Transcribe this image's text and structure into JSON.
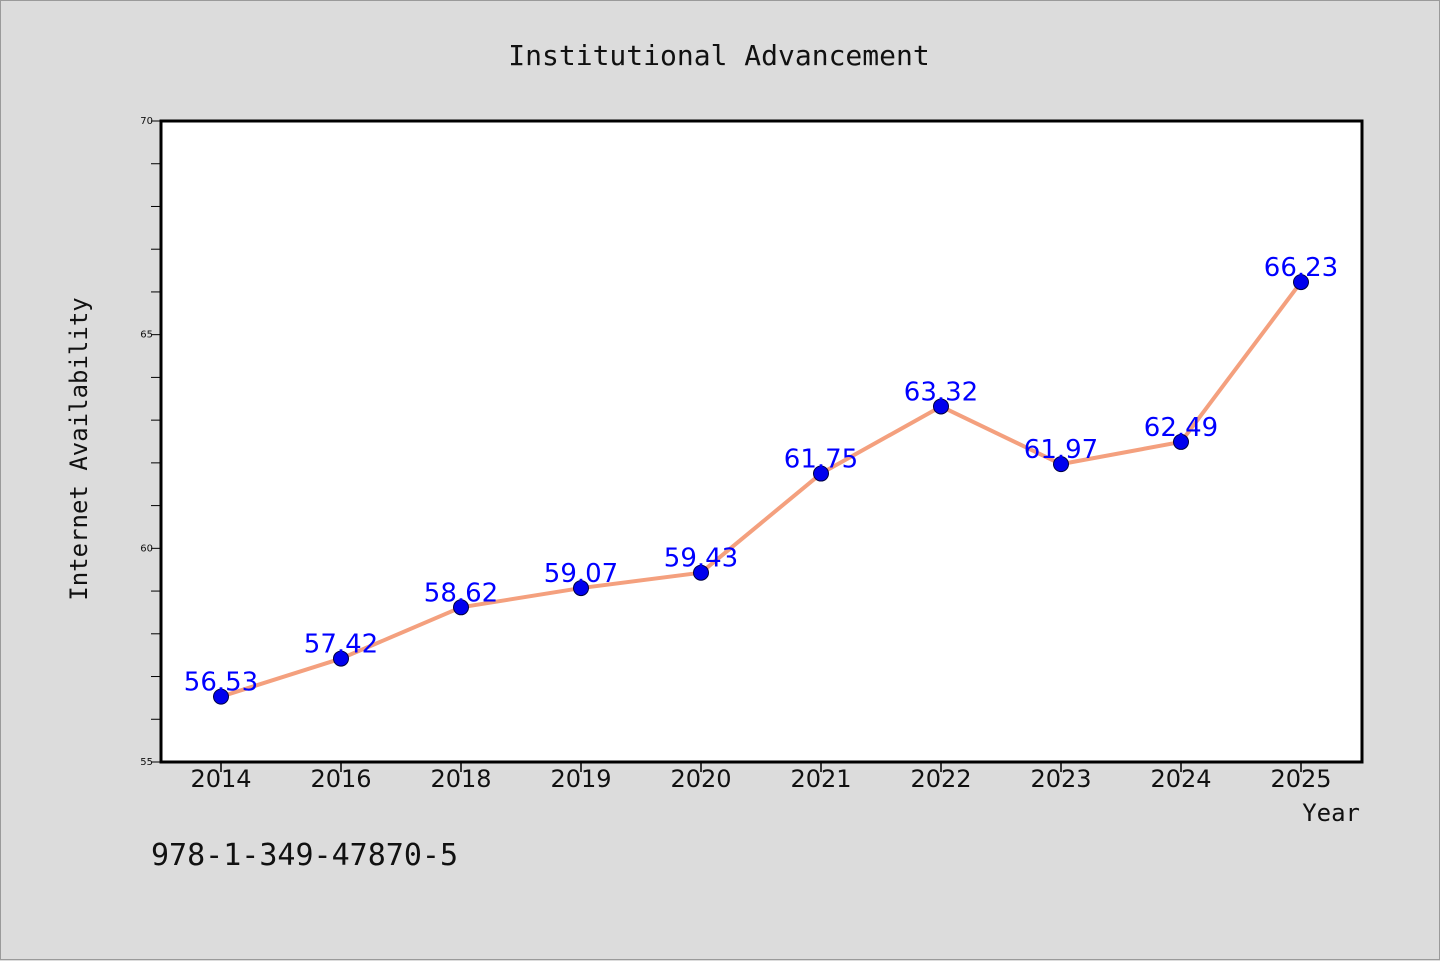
{
  "chart_data": {
    "type": "line",
    "title": "Institutional Advancement",
    "xlabel": "Year",
    "ylabel": "Internet Availability",
    "categories": [
      "2014",
      "2016",
      "2018",
      "2019",
      "2020",
      "2021",
      "2022",
      "2023",
      "2024",
      "2025"
    ],
    "series": [
      {
        "values": [
          56.53,
          57.42,
          58.62,
          59.07,
          59.43,
          61.75,
          63.32,
          61.97,
          62.49,
          66.23
        ],
        "line_color": "#f4a07e",
        "marker_color": "#0000ee"
      }
    ],
    "data_labels": [
      "56.53",
      "57.42",
      "58.62",
      "59.07",
      "59.43",
      "61.75",
      "63.32",
      "61.97",
      "62.49",
      "66.23"
    ],
    "ylim": [
      55,
      70
    ],
    "yticks": [
      "55",
      "60",
      "65",
      "70"
    ],
    "grid": false,
    "data_label_color": "#0000ff"
  },
  "footer": {
    "isbn": "978-1-349-47870-5"
  }
}
